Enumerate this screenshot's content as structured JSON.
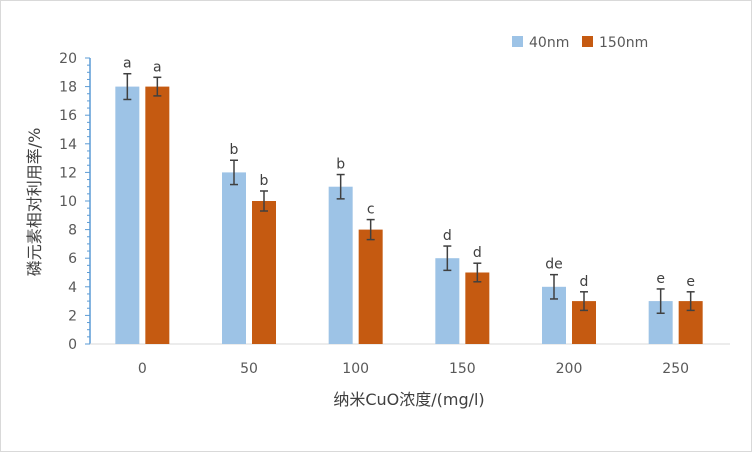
{
  "chart_data": {
    "type": "bar",
    "categories": [
      "0",
      "50",
      "100",
      "150",
      "200",
      "250"
    ],
    "series": [
      {
        "name": "40nm",
        "color": "#9dc3e6",
        "values": [
          18,
          12,
          11,
          6,
          4,
          3
        ],
        "errors": [
          0.9,
          0.85,
          0.85,
          0.85,
          0.85,
          0.85
        ],
        "letters": [
          "a",
          "b",
          "b",
          "d",
          "de",
          "e"
        ]
      },
      {
        "name": "150nm",
        "color": "#c55a11",
        "values": [
          18,
          10,
          8,
          5,
          3,
          3
        ],
        "errors": [
          0.65,
          0.7,
          0.7,
          0.65,
          0.65,
          0.65
        ],
        "letters": [
          "a",
          "b",
          "c",
          "d",
          "d",
          "e"
        ]
      }
    ],
    "xlabel": "纳米CuO浓度/(mg/l)",
    "ylabel": "磷元素相对利用率/%",
    "ylim": [
      0,
      20
    ],
    "yticks": [
      0,
      2,
      4,
      6,
      8,
      10,
      12,
      14,
      16,
      18,
      20
    ],
    "legend_position": "top-right",
    "grid": false,
    "axis_color": "#5b9bd5",
    "error_bar_color": "#404040"
  }
}
